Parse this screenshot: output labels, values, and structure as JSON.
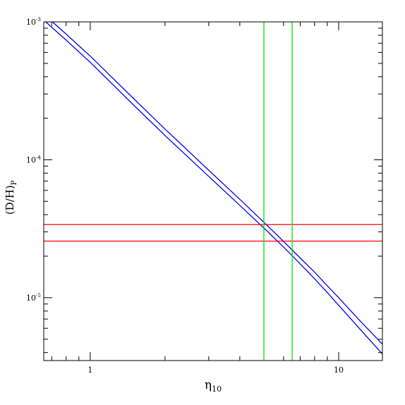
{
  "chart_data": {
    "type": "line",
    "title": "",
    "xlabel": {
      "main": "η",
      "sub": "10"
    },
    "ylabel": {
      "main": "(D/H)",
      "sub": "P"
    },
    "x_scale": "log",
    "y_scale": "log",
    "xlim": [
      0.65,
      15
    ],
    "ylim": [
      3.5e-06,
      0.001
    ],
    "x_ticks": [
      {
        "value": 1,
        "label": "1"
      },
      {
        "value": 10,
        "label": "10"
      }
    ],
    "y_ticks": [
      {
        "value": 0.001,
        "base": "10",
        "exp": "-3"
      },
      {
        "value": 0.0001,
        "base": "10",
        "exp": "-4"
      },
      {
        "value": 1e-05,
        "base": "10",
        "exp": "-5"
      }
    ],
    "grid": false,
    "series": [
      {
        "color": "#0000ee",
        "style": "curve",
        "x": [
          0.65,
          0.8,
          1.0,
          1.5,
          2.0,
          3.0,
          4.0,
          5.0,
          6.0,
          7.0,
          8.0,
          9.0,
          10.0,
          12.0,
          15.0
        ],
        "y": [
          0.00103,
          0.000737,
          0.000509,
          0.000248,
          0.00015,
          7.57e-05,
          4.67e-05,
          3.2e-05,
          2.33e-05,
          1.76e-05,
          1.37e-05,
          1.09e-05,
          8.8e-06,
          6.1e-06,
          3.9e-06
        ]
      },
      {
        "color": "#0000ee",
        "style": "curve",
        "x": [
          0.65,
          0.8,
          1.0,
          1.5,
          2.0,
          3.0,
          4.0,
          5.0,
          6.0,
          7.0,
          8.0,
          9.0,
          10.0,
          12.0,
          15.0
        ],
        "y": [
          0.00114,
          0.000815,
          0.000565,
          0.000276,
          0.000167,
          8.39e-05,
          5.17e-05,
          3.52e-05,
          2.56e-05,
          1.94e-05,
          1.53e-05,
          1.22e-05,
          1e-05,
          7e-06,
          4.6e-06
        ]
      },
      {
        "color": "#ff0000",
        "style": "hline",
        "y": 2.57e-05
      },
      {
        "color": "#ff0000",
        "style": "hline",
        "y": 3.39e-05
      },
      {
        "color": "#00e600",
        "style": "vline",
        "x": 5.0
      },
      {
        "color": "#00e600",
        "style": "vline",
        "x": 6.5
      }
    ]
  }
}
